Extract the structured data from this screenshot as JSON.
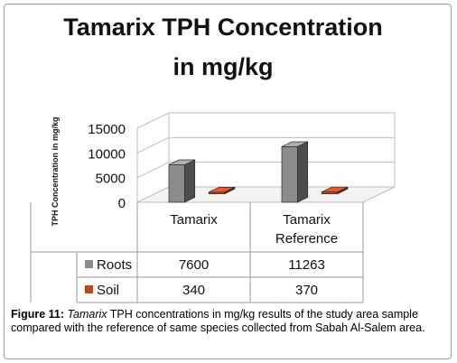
{
  "figure": {
    "caption_label": "Figure 11:",
    "caption_species": "Tamarix",
    "caption_text": " TPH concentrations in mg/kg results of the study area sample compared with the reference of same species collected from Sabah Al-Salem area."
  },
  "chart_data": {
    "type": "bar",
    "title_line1": "Tamarix TPH Concentration",
    "title_line2": "in mg/kg",
    "ylabel": "TPH Concentration in mg/kg",
    "xlabel": "",
    "categories": [
      "Tamarix",
      "Tamarix Reference"
    ],
    "category_label_lines": [
      [
        "Tamarix"
      ],
      [
        "Tamarix",
        "Reference"
      ]
    ],
    "ylim": [
      0,
      15000
    ],
    "yticks": [
      "0",
      "5000",
      "10000",
      "15000"
    ],
    "series": [
      {
        "name": "Roots",
        "values": [
          7600,
          11263
        ],
        "value_labels": [
          "7600",
          "11263"
        ],
        "color": "#8c8c8c"
      },
      {
        "name": "Soil",
        "values": [
          340,
          370
        ],
        "value_labels": [
          "340",
          "370"
        ],
        "color": "#c0461c"
      }
    ],
    "legend": "table-below",
    "grid": true
  }
}
